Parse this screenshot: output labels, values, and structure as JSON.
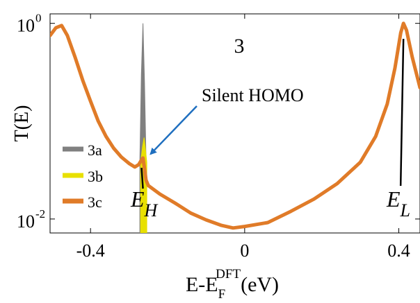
{
  "chart_data": {
    "type": "line",
    "panel_label": "3",
    "y_axis": {
      "label": "T(E)",
      "scale": "log",
      "range": [
        0.0072,
        1.25
      ],
      "ticks": [
        {
          "value": 1,
          "base": "10",
          "exp": "0"
        },
        {
          "value": 0.01,
          "base": "10",
          "exp": "-2"
        }
      ]
    },
    "x_axis": {
      "label_main": "E-E",
      "label_sub": "F",
      "label_sup": "DFT",
      "label_unit": "(eV)",
      "range": [
        -0.505,
        0.455
      ],
      "ticks": [
        {
          "value": -0.4,
          "label": "-0.4"
        },
        {
          "value": 0,
          "label": "0"
        },
        {
          "value": 0.4,
          "label": "0.4"
        }
      ]
    },
    "legend": {
      "placement": "left",
      "entries": [
        {
          "name": "3a",
          "color": "#808080"
        },
        {
          "name": "3b",
          "color": "#e8e000"
        },
        {
          "name": "3c",
          "color": "#e07b28"
        }
      ]
    },
    "series": [
      {
        "name": "3a",
        "color": "#808080",
        "points": [
          [
            -0.272,
            0.038
          ],
          [
            -0.268,
            0.3
          ],
          [
            -0.264,
            1.0
          ],
          [
            -0.26,
            0.25
          ],
          [
            -0.256,
            0.04
          ]
        ]
      },
      {
        "name": "3b",
        "color": "#e8e000",
        "points": [
          [
            -0.27,
            0.038
          ],
          [
            -0.265,
            0.055
          ],
          [
            -0.261,
            0.068
          ],
          [
            -0.257,
            0.05
          ],
          [
            -0.254,
            0.038
          ]
        ]
      },
      {
        "name": "3c",
        "color": "#e07b28",
        "points": [
          [
            -0.505,
            0.75
          ],
          [
            -0.49,
            0.9
          ],
          [
            -0.475,
            0.95
          ],
          [
            -0.46,
            0.75
          ],
          [
            -0.44,
            0.45
          ],
          [
            -0.42,
            0.26
          ],
          [
            -0.4,
            0.16
          ],
          [
            -0.38,
            0.1
          ],
          [
            -0.36,
            0.07
          ],
          [
            -0.34,
            0.053
          ],
          [
            -0.32,
            0.043
          ],
          [
            -0.3,
            0.037
          ],
          [
            -0.285,
            0.034
          ],
          [
            -0.275,
            0.036
          ],
          [
            -0.268,
            0.04
          ],
          [
            -0.264,
            0.042
          ],
          [
            -0.26,
            0.033
          ],
          [
            -0.256,
            0.025
          ],
          [
            -0.25,
            0.022
          ],
          [
            -0.22,
            0.018
          ],
          [
            -0.18,
            0.0145
          ],
          [
            -0.14,
            0.0115
          ],
          [
            -0.1,
            0.0098
          ],
          [
            -0.06,
            0.0086
          ],
          [
            -0.03,
            0.0081
          ],
          [
            0.0,
            0.0084
          ],
          [
            0.06,
            0.0092
          ],
          [
            0.12,
            0.012
          ],
          [
            0.18,
            0.016
          ],
          [
            0.24,
            0.023
          ],
          [
            0.3,
            0.038
          ],
          [
            0.34,
            0.07
          ],
          [
            0.37,
            0.15
          ],
          [
            0.39,
            0.35
          ],
          [
            0.405,
            0.8
          ],
          [
            0.412,
            1.0
          ],
          [
            0.42,
            0.85
          ],
          [
            0.435,
            0.45
          ],
          [
            0.455,
            0.22
          ]
        ]
      }
    ],
    "annotations": [
      {
        "text": "Silent HOMO",
        "points_to": [
          -0.253,
          0.038
        ],
        "color": "#1f6fbf"
      },
      {
        "main": "E",
        "sub": "H",
        "x": -0.264
      },
      {
        "main": "E",
        "sub": "L",
        "x": 0.412
      }
    ]
  }
}
